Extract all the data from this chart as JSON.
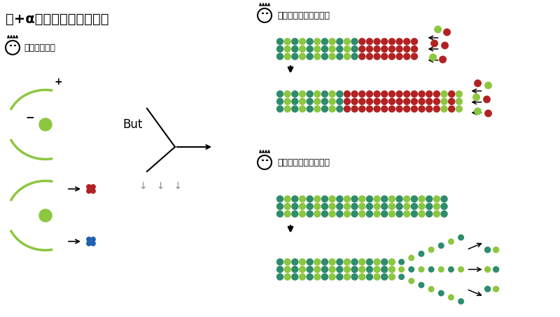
{
  "title": "》+α　微小管に関して》",
  "bg_color": "#ffffff",
  "text_color": "#000000",
  "green_light": "#8dc63f",
  "green_dark": "#2e8b6e",
  "red_color": "#b22222",
  "blue_color": "#2060b0",
  "gray_color": "#888888",
  "label_somosomo": "《そもそも》",
  "label_shincho": "《伸長していくとき》",
  "label_tanshuku": "《短縮していくとき》",
  "text_but": "But"
}
